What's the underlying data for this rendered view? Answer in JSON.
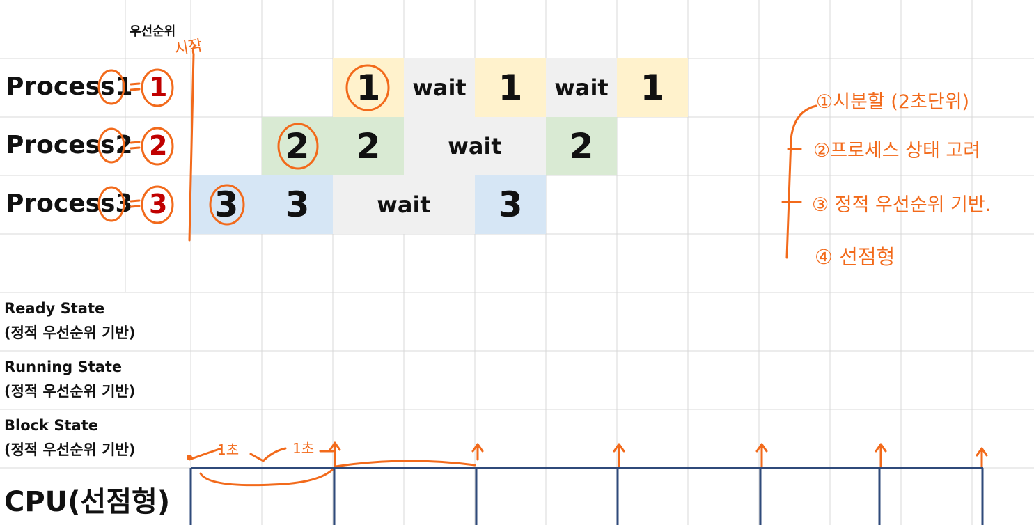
{
  "header": {
    "priority_label": "우선순위",
    "start_note": "시작"
  },
  "processes": [
    {
      "label": "Process1",
      "priority": "1"
    },
    {
      "label": "Process2",
      "priority": "2"
    },
    {
      "label": "Process3",
      "priority": "3"
    }
  ],
  "timeline": {
    "p1": [
      {
        "text": "1",
        "kind": "run"
      },
      {
        "text": "wait",
        "kind": "wait"
      },
      {
        "text": "1",
        "kind": "run"
      },
      {
        "text": "wait",
        "kind": "wait"
      },
      {
        "text": "1",
        "kind": "run"
      }
    ],
    "p2": [
      {
        "text": "2",
        "kind": "run"
      },
      {
        "text": "2",
        "kind": "run"
      },
      {
        "text": "wait",
        "kind": "wait"
      },
      {
        "text": "2",
        "kind": "run"
      }
    ],
    "p3": [
      {
        "text": "3",
        "kind": "run"
      },
      {
        "text": "3",
        "kind": "run"
      },
      {
        "text": "wait",
        "kind": "wait"
      },
      {
        "text": "3",
        "kind": "run"
      }
    ]
  },
  "states": {
    "ready": {
      "title": "Ready State",
      "sub": "(정적 우선순위 기반)"
    },
    "running": {
      "title": "Running State",
      "sub": "(정적 우선순위 기반)"
    },
    "block": {
      "title": "Block State",
      "sub": "(정적 우선순위 기반)"
    },
    "cpu": {
      "title": "CPU(선점형)"
    }
  },
  "notes": {
    "n1": "①시분할 (2초단위)",
    "n2": "②프로세스 상태 고려",
    "n3": "③ 정적 우선순위 기반.",
    "n4": "④ 선점형"
  },
  "cpu_annotations": {
    "first_sec": "1초",
    "second_sec": "1초"
  },
  "colors": {
    "p1": "#fff2cc",
    "p2": "#d9ead3",
    "p3": "#d6e6f5",
    "wait": "#f0f0f0",
    "accent": "#f26a1b",
    "priority": "#c00000",
    "cpu_line": "#2f4a7a",
    "grid": "#d9d9d9"
  }
}
